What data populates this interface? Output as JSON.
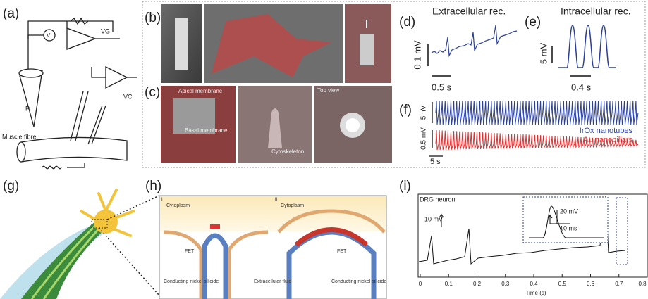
{
  "panel_a": {
    "label": "(a)",
    "vg": "VG",
    "v": "V",
    "vc": "VC",
    "p": "P",
    "fibre": "Muscle fibre"
  },
  "panel_b": {
    "label": "(b)"
  },
  "panel_c": {
    "label": "(c)",
    "apical": "Apical membrane",
    "basal": "Basal membrane",
    "cytoskeleton": "Cytoskeleton",
    "top_view": "Top view"
  },
  "panel_d": {
    "label": "(d)",
    "title": "Extracellular rec.",
    "y_scale": "0.1 mV",
    "x_scale": "0.5 s"
  },
  "panel_e": {
    "label": "(e)",
    "title": "Intracellular rec.",
    "y_scale": "5 mV",
    "x_scale": "0.4 s"
  },
  "panel_f": {
    "label": "(f)",
    "y_scale_top": "5mV",
    "y_scale_bottom": "0.5 mV",
    "legend_top": "IrOx nanotubes",
    "legend_bottom": "Au nanopillars",
    "x_scale": "5 s"
  },
  "panel_g": {
    "label": "(g)"
  },
  "panel_h": {
    "label": "(h)",
    "left": {
      "index": "i",
      "cytoplasm": "Cytoplasm",
      "fet": "FET",
      "conductor": "Conducting nickel silicide"
    },
    "middle": "Extracellular fluid",
    "right": {
      "index": "ii",
      "cytoplasm": "Cytoplasm",
      "fet": "FET",
      "conductor": "Conducting nickel silicide"
    }
  },
  "panel_i": {
    "label": "(i)",
    "cell": "DRG neuron",
    "scale_main": "10 mV",
    "scale_inset_y": "20 mV",
    "scale_inset_x": "10 ms",
    "xlabel": "Time (s)",
    "xlim": [
      0,
      0.8
    ],
    "xticks": [
      0,
      0.1,
      0.2,
      0.3,
      0.4,
      0.5,
      0.6,
      0.7,
      0.8
    ]
  }
}
